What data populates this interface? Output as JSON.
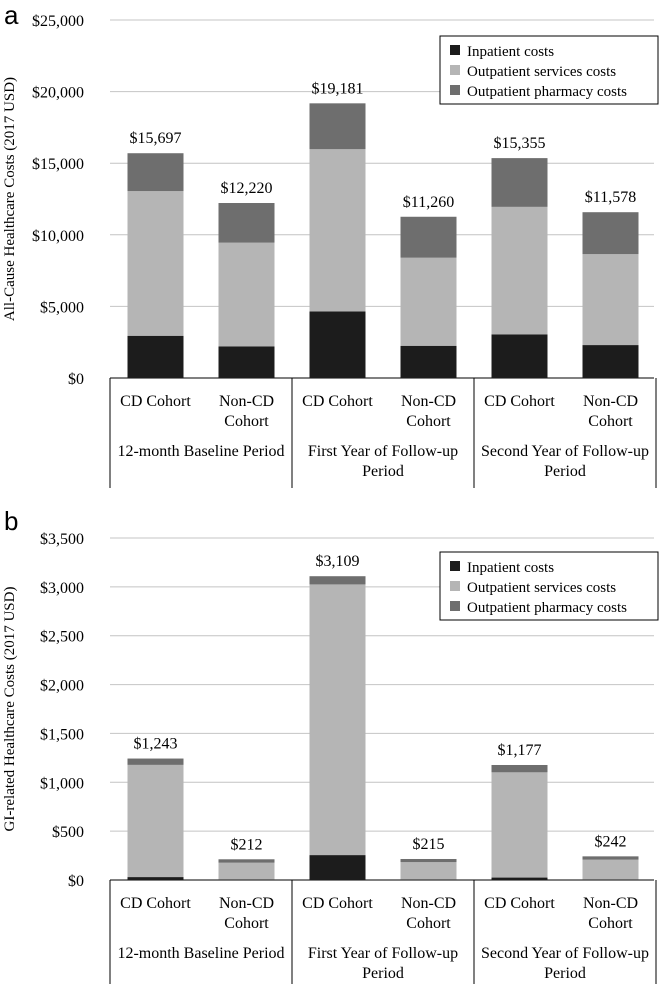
{
  "panels": [
    {
      "label": "a",
      "chart_data": {
        "type": "bar",
        "stacked": true,
        "ylabel": "All-Cause Healthcare Costs (2017 USD)",
        "ylim": [
          0,
          25000
        ],
        "yticks": [
          0,
          5000,
          10000,
          15000,
          20000,
          25000
        ],
        "ytick_labels": [
          "$0",
          "$5,000",
          "$10,000",
          "$15,000",
          "$20,000",
          "$25,000"
        ],
        "categories": [
          "CD Cohort",
          "Non-CD Cohort",
          "CD Cohort",
          "Non-CD Cohort",
          "CD Cohort",
          "Non-CD Cohort"
        ],
        "category_lines": [
          [
            "CD Cohort"
          ],
          [
            "Non-CD",
            "Cohort"
          ],
          [
            "CD Cohort"
          ],
          [
            "Non-CD",
            "Cohort"
          ],
          [
            "CD Cohort"
          ],
          [
            "Non-CD",
            "Cohort"
          ]
        ],
        "groups": [
          {
            "lines": [
              "12-month Baseline Period"
            ]
          },
          {
            "lines": [
              "First Year of Follow-up",
              "Period"
            ]
          },
          {
            "lines": [
              "Second Year of Follow-up",
              "Period"
            ]
          }
        ],
        "series": [
          {
            "name": "Inpatient costs",
            "color": "#1c1c1c",
            "values": [
              2950,
              2200,
              4650,
              2250,
              3050,
              2300
            ]
          },
          {
            "name": "Outpatient services costs",
            "color": "#b5b5b5",
            "values": [
              10100,
              7250,
              11330,
              6150,
              8900,
              6350
            ]
          },
          {
            "name": "Outpatient pharmacy costs",
            "color": "#6e6e6e",
            "values": [
              2647,
              2770,
              3201,
              2860,
              3405,
              2928
            ]
          }
        ],
        "totals": [
          15697,
          12220,
          19181,
          11260,
          15355,
          11578
        ],
        "total_labels": [
          "$15,697",
          "$12,220",
          "$19,181",
          "$11,260",
          "$15,355",
          "$11,578"
        ],
        "legend_position": "top-right",
        "grid": true
      }
    },
    {
      "label": "b",
      "chart_data": {
        "type": "bar",
        "stacked": true,
        "ylabel": "GI-related Healthcare Costs (2017 USD)",
        "ylim": [
          0,
          3500
        ],
        "yticks": [
          0,
          500,
          1000,
          1500,
          2000,
          2500,
          3000,
          3500
        ],
        "ytick_labels": [
          "$0",
          "$500",
          "$1,000",
          "$1,500",
          "$2,000",
          "$2,500",
          "$3,000",
          "$3,500"
        ],
        "categories": [
          "CD Cohort",
          "Non-CD Cohort",
          "CD Cohort",
          "Non-CD Cohort",
          "CD Cohort",
          "Non-CD Cohort"
        ],
        "category_lines": [
          [
            "CD Cohort"
          ],
          [
            "Non-CD",
            "Cohort"
          ],
          [
            "CD Cohort"
          ],
          [
            "Non-CD",
            "Cohort"
          ],
          [
            "CD Cohort"
          ],
          [
            "Non-CD",
            "Cohort"
          ]
        ],
        "groups": [
          {
            "lines": [
              "12-month Baseline Period"
            ]
          },
          {
            "lines": [
              "First Year of Follow-up",
              "Period"
            ]
          },
          {
            "lines": [
              "Second Year of Follow-up",
              "Period"
            ]
          }
        ],
        "series": [
          {
            "name": "Inpatient costs",
            "color": "#1c1c1c",
            "values": [
              30,
              5,
              255,
              5,
              25,
              5
            ]
          },
          {
            "name": "Outpatient services costs",
            "color": "#b5b5b5",
            "values": [
              1148,
              172,
              2770,
              178,
              1077,
              203
            ]
          },
          {
            "name": "Outpatient pharmacy costs",
            "color": "#6e6e6e",
            "values": [
              65,
              35,
              84,
              32,
              75,
              34
            ]
          }
        ],
        "totals": [
          1243,
          212,
          3109,
          215,
          1177,
          242
        ],
        "total_labels": [
          "$1,243",
          "$212",
          "$3,109",
          "$215",
          "$1,177",
          "$242"
        ],
        "legend_position": "top-right",
        "grid": true
      }
    }
  ]
}
